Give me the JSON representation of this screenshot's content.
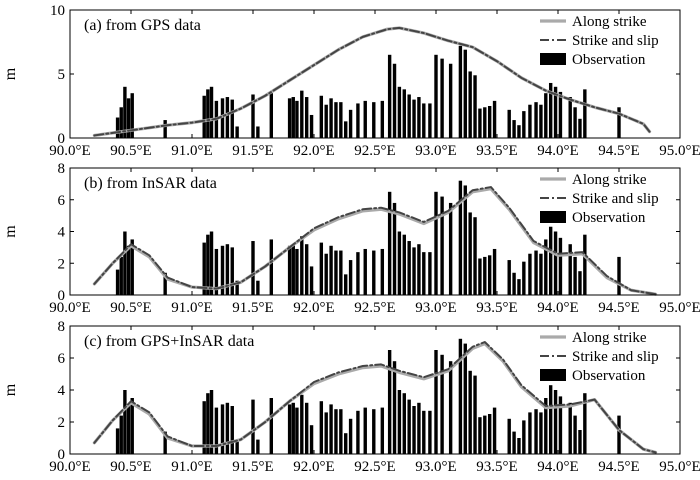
{
  "chart_data": [
    {
      "type": "bar",
      "title": "(a) from GPS data",
      "ylabel": "m",
      "xlim": [
        90.0,
        95.0
      ],
      "ylim": [
        0,
        10
      ],
      "xticks": [
        "90.0°E",
        "90.5°E",
        "91.0°E",
        "91.5°E",
        "92.0°E",
        "92.5°E",
        "93.0°E",
        "93.5°E",
        "94.0°E",
        "94.5°E",
        "95.0°E"
      ],
      "yticks": [
        "0",
        "5",
        "10"
      ],
      "legend": {
        "position": "top-right",
        "entries": [
          "Along strike",
          "Strike and slip",
          "Observation"
        ]
      },
      "series": [
        {
          "name": "Along strike",
          "type": "line",
          "color": "#aaaaaa",
          "x": [
            90.2,
            90.5,
            90.8,
            91.0,
            91.2,
            91.4,
            91.6,
            91.8,
            92.0,
            92.2,
            92.4,
            92.6,
            92.7,
            92.9,
            93.1,
            93.3,
            93.5,
            93.7,
            93.9,
            94.1,
            94.3,
            94.5,
            94.7,
            94.75
          ],
          "y": [
            0.2,
            0.6,
            1.0,
            1.2,
            1.5,
            2.3,
            3.3,
            4.5,
            5.7,
            6.9,
            7.9,
            8.5,
            8.6,
            8.2,
            7.6,
            7.1,
            6.0,
            4.7,
            3.7,
            3.0,
            2.4,
            1.9,
            1.1,
            0.5
          ]
        },
        {
          "name": "Strike and slip",
          "type": "line",
          "color": "#444444",
          "x": [
            90.2,
            90.5,
            90.8,
            91.0,
            91.2,
            91.4,
            91.6,
            91.8,
            92.0,
            92.2,
            92.4,
            92.6,
            92.7,
            92.9,
            93.1,
            93.3,
            93.5,
            93.7,
            93.9,
            94.1,
            94.3,
            94.5,
            94.7,
            94.75
          ],
          "y": [
            0.2,
            0.6,
            1.0,
            1.2,
            1.5,
            2.3,
            3.3,
            4.5,
            5.7,
            6.9,
            7.9,
            8.5,
            8.6,
            8.2,
            7.6,
            7.1,
            6.0,
            4.7,
            3.7,
            3.0,
            2.4,
            1.9,
            1.1,
            0.5
          ]
        },
        {
          "name": "Observation",
          "type": "bar",
          "color": "#000000",
          "x": [
            90.39,
            90.42,
            90.45,
            90.48,
            90.51,
            90.78,
            91.1,
            91.13,
            91.16,
            91.2,
            91.25,
            91.29,
            91.33,
            91.37,
            91.5,
            91.54,
            91.65,
            91.8,
            91.83,
            91.86,
            91.9,
            91.94,
            91.98,
            92.06,
            92.1,
            92.14,
            92.18,
            92.22,
            92.26,
            92.3,
            92.36,
            92.42,
            92.49,
            92.56,
            92.62,
            92.66,
            92.7,
            92.74,
            92.78,
            92.82,
            92.86,
            92.9,
            92.95,
            93.0,
            93.05,
            93.12,
            93.2,
            93.24,
            93.28,
            93.32,
            93.36,
            93.4,
            93.44,
            93.48,
            93.6,
            93.64,
            93.68,
            93.72,
            93.77,
            93.82,
            93.86,
            93.9,
            93.94,
            93.98,
            94.02,
            94.1,
            94.14,
            94.18,
            94.22,
            94.5
          ],
          "y": [
            1.6,
            2.4,
            4.0,
            3.1,
            3.5,
            1.4,
            3.3,
            3.8,
            4.0,
            2.9,
            3.1,
            3.2,
            3.0,
            0.9,
            3.4,
            0.9,
            3.5,
            3.1,
            3.2,
            2.9,
            3.7,
            3.2,
            1.8,
            3.3,
            2.6,
            3.1,
            2.8,
            2.8,
            1.3,
            2.2,
            2.7,
            2.9,
            2.8,
            2.9,
            6.5,
            5.8,
            4.0,
            3.8,
            3.4,
            3.0,
            3.2,
            2.7,
            2.7,
            6.5,
            6.2,
            5.8,
            7.2,
            6.9,
            5.2,
            4.9,
            2.3,
            2.4,
            2.5,
            2.9,
            2.2,
            1.4,
            1.0,
            2.1,
            2.6,
            2.8,
            2.6,
            3.5,
            4.3,
            4.0,
            3.6,
            3.2,
            2.4,
            1.5,
            3.8,
            2.4
          ]
        }
      ]
    },
    {
      "type": "bar",
      "title": "(b) from InSAR data",
      "ylabel": "m",
      "xlim": [
        90.0,
        95.0
      ],
      "ylim": [
        0,
        8
      ],
      "xticks": [
        "90.0°E",
        "90.5°E",
        "91.0°E",
        "91.5°E",
        "92.0°E",
        "92.5°E",
        "93.0°E",
        "93.5°E",
        "94.0°E",
        "94.5°E",
        "95.0°E"
      ],
      "yticks": [
        "0",
        "2",
        "4",
        "6",
        "8"
      ],
      "legend": {
        "position": "top-right",
        "entries": [
          "Along strike",
          "Strike and slip",
          "Observation"
        ]
      },
      "series": [
        {
          "name": "Along strike",
          "type": "line",
          "color": "#aaaaaa",
          "x": [
            90.2,
            90.35,
            90.5,
            90.65,
            90.8,
            91.0,
            91.2,
            91.4,
            91.6,
            91.8,
            92.0,
            92.2,
            92.4,
            92.55,
            92.7,
            92.9,
            93.1,
            93.3,
            93.45,
            93.6,
            93.8,
            94.0,
            94.2,
            94.4,
            94.6,
            94.8
          ],
          "y": [
            0.7,
            2.0,
            3.1,
            2.4,
            1.0,
            0.5,
            0.4,
            0.8,
            1.8,
            3.0,
            4.1,
            4.8,
            5.3,
            5.4,
            5.1,
            4.5,
            5.2,
            6.5,
            6.7,
            5.4,
            3.3,
            2.5,
            2.6,
            1.1,
            0.3,
            0.05
          ]
        },
        {
          "name": "Strike and slip",
          "type": "line",
          "color": "#444444",
          "x": [
            90.2,
            90.35,
            90.5,
            90.65,
            90.8,
            91.0,
            91.2,
            91.4,
            91.6,
            91.8,
            92.0,
            92.2,
            92.4,
            92.55,
            92.7,
            92.9,
            93.1,
            93.3,
            93.45,
            93.6,
            93.8,
            94.0,
            94.2,
            94.4,
            94.6,
            94.8
          ],
          "y": [
            0.7,
            2.0,
            3.2,
            2.5,
            1.1,
            0.5,
            0.4,
            0.8,
            1.8,
            3.0,
            4.2,
            4.9,
            5.4,
            5.5,
            5.2,
            4.6,
            5.3,
            6.6,
            6.8,
            5.5,
            3.4,
            2.6,
            2.7,
            1.2,
            0.3,
            0.05
          ]
        },
        {
          "name": "Observation",
          "type": "bar",
          "color": "#000000",
          "x": [
            90.39,
            90.42,
            90.45,
            90.48,
            90.51,
            90.78,
            91.1,
            91.13,
            91.16,
            91.2,
            91.25,
            91.29,
            91.33,
            91.37,
            91.5,
            91.54,
            91.65,
            91.8,
            91.83,
            91.86,
            91.9,
            91.94,
            91.98,
            92.06,
            92.1,
            92.14,
            92.18,
            92.22,
            92.26,
            92.3,
            92.36,
            92.42,
            92.49,
            92.56,
            92.62,
            92.66,
            92.7,
            92.74,
            92.78,
            92.82,
            92.86,
            92.9,
            92.95,
            93.0,
            93.05,
            93.12,
            93.2,
            93.24,
            93.28,
            93.32,
            93.36,
            93.4,
            93.44,
            93.48,
            93.6,
            93.64,
            93.68,
            93.72,
            93.77,
            93.82,
            93.86,
            93.9,
            93.94,
            93.98,
            94.02,
            94.1,
            94.14,
            94.18,
            94.22,
            94.5
          ],
          "y": [
            1.6,
            2.4,
            4.0,
            3.1,
            3.5,
            1.4,
            3.3,
            3.8,
            4.0,
            2.9,
            3.1,
            3.2,
            3.0,
            0.9,
            3.4,
            0.9,
            3.5,
            3.1,
            3.2,
            2.9,
            3.7,
            3.2,
            1.8,
            3.3,
            2.6,
            3.1,
            2.8,
            2.8,
            1.3,
            2.2,
            2.7,
            2.9,
            2.8,
            2.9,
            6.5,
            5.8,
            4.0,
            3.8,
            3.4,
            3.0,
            3.2,
            2.7,
            2.7,
            6.5,
            6.2,
            5.8,
            7.2,
            6.9,
            5.2,
            4.9,
            2.3,
            2.4,
            2.5,
            2.9,
            2.2,
            1.4,
            1.0,
            2.1,
            2.6,
            2.8,
            2.6,
            3.5,
            4.3,
            4.0,
            3.6,
            3.2,
            2.4,
            1.5,
            3.8,
            2.4
          ]
        }
      ]
    },
    {
      "type": "bar",
      "title": "(c) from GPS+InSAR data",
      "ylabel": "m",
      "xlim": [
        90.0,
        95.0
      ],
      "ylim": [
        0,
        8
      ],
      "xticks": [
        "90.0°E",
        "90.5°E",
        "91.0°E",
        "91.5°E",
        "92.0°E",
        "92.5°E",
        "93.0°E",
        "93.5°E",
        "94.0°E",
        "94.5°E",
        "95.0°E"
      ],
      "yticks": [
        "0",
        "2",
        "4",
        "6",
        "8"
      ],
      "legend": {
        "position": "top-right",
        "entries": [
          "Along strike",
          "Strike and slip",
          "Observation"
        ]
      },
      "series": [
        {
          "name": "Along strike",
          "type": "line",
          "color": "#aaaaaa",
          "x": [
            90.2,
            90.35,
            90.5,
            90.65,
            90.8,
            91.0,
            91.2,
            91.4,
            91.6,
            91.8,
            92.0,
            92.2,
            92.4,
            92.55,
            92.7,
            92.9,
            93.1,
            93.3,
            93.4,
            93.55,
            93.7,
            93.9,
            94.1,
            94.3,
            94.5,
            94.7,
            94.8
          ],
          "y": [
            0.7,
            2.1,
            3.2,
            2.5,
            1.0,
            0.5,
            0.5,
            0.9,
            2.0,
            3.3,
            4.4,
            5.0,
            5.4,
            5.5,
            5.1,
            4.7,
            5.2,
            6.6,
            6.9,
            5.8,
            4.2,
            2.9,
            3.0,
            3.4,
            1.5,
            0.3,
            0.1
          ]
        },
        {
          "name": "Strike and slip",
          "type": "line",
          "color": "#444444",
          "x": [
            90.2,
            90.35,
            90.5,
            90.65,
            90.8,
            91.0,
            91.2,
            91.4,
            91.6,
            91.8,
            92.0,
            92.2,
            92.4,
            92.55,
            92.7,
            92.9,
            93.1,
            93.3,
            93.4,
            93.55,
            93.7,
            93.9,
            94.1,
            94.3,
            94.5,
            94.7,
            94.8
          ],
          "y": [
            0.7,
            2.1,
            3.3,
            2.6,
            1.1,
            0.5,
            0.5,
            0.9,
            2.0,
            3.3,
            4.5,
            5.1,
            5.5,
            5.6,
            5.2,
            4.8,
            5.3,
            6.7,
            7.0,
            5.9,
            4.3,
            3.0,
            3.1,
            3.4,
            1.5,
            0.3,
            0.1
          ]
        },
        {
          "name": "Observation",
          "type": "bar",
          "color": "#000000",
          "x": [
            90.39,
            90.42,
            90.45,
            90.48,
            90.51,
            90.78,
            91.1,
            91.13,
            91.16,
            91.2,
            91.25,
            91.29,
            91.33,
            91.37,
            91.5,
            91.54,
            91.65,
            91.8,
            91.83,
            91.86,
            91.9,
            91.94,
            91.98,
            92.06,
            92.1,
            92.14,
            92.18,
            92.22,
            92.26,
            92.3,
            92.36,
            92.42,
            92.49,
            92.56,
            92.62,
            92.66,
            92.7,
            92.74,
            92.78,
            92.82,
            92.86,
            92.9,
            92.95,
            93.0,
            93.05,
            93.12,
            93.2,
            93.24,
            93.28,
            93.32,
            93.36,
            93.4,
            93.44,
            93.48,
            93.6,
            93.64,
            93.68,
            93.72,
            93.77,
            93.82,
            93.86,
            93.9,
            93.94,
            93.98,
            94.02,
            94.1,
            94.14,
            94.18,
            94.22,
            94.5
          ],
          "y": [
            1.6,
            2.4,
            4.0,
            3.1,
            3.5,
            1.4,
            3.3,
            3.8,
            4.0,
            2.9,
            3.1,
            3.2,
            3.0,
            0.9,
            3.4,
            0.9,
            3.5,
            3.1,
            3.2,
            2.9,
            3.7,
            3.2,
            1.8,
            3.3,
            2.6,
            3.1,
            2.8,
            2.8,
            1.3,
            2.2,
            2.7,
            2.9,
            2.8,
            2.9,
            6.5,
            5.8,
            4.0,
            3.8,
            3.4,
            3.0,
            3.2,
            2.7,
            2.7,
            6.5,
            6.2,
            5.8,
            7.2,
            6.9,
            5.2,
            4.9,
            2.3,
            2.4,
            2.5,
            2.9,
            2.2,
            1.4,
            1.0,
            2.1,
            2.6,
            2.8,
            2.6,
            3.5,
            4.3,
            4.0,
            3.6,
            3.2,
            2.4,
            1.5,
            3.8,
            2.4
          ]
        }
      ]
    }
  ]
}
